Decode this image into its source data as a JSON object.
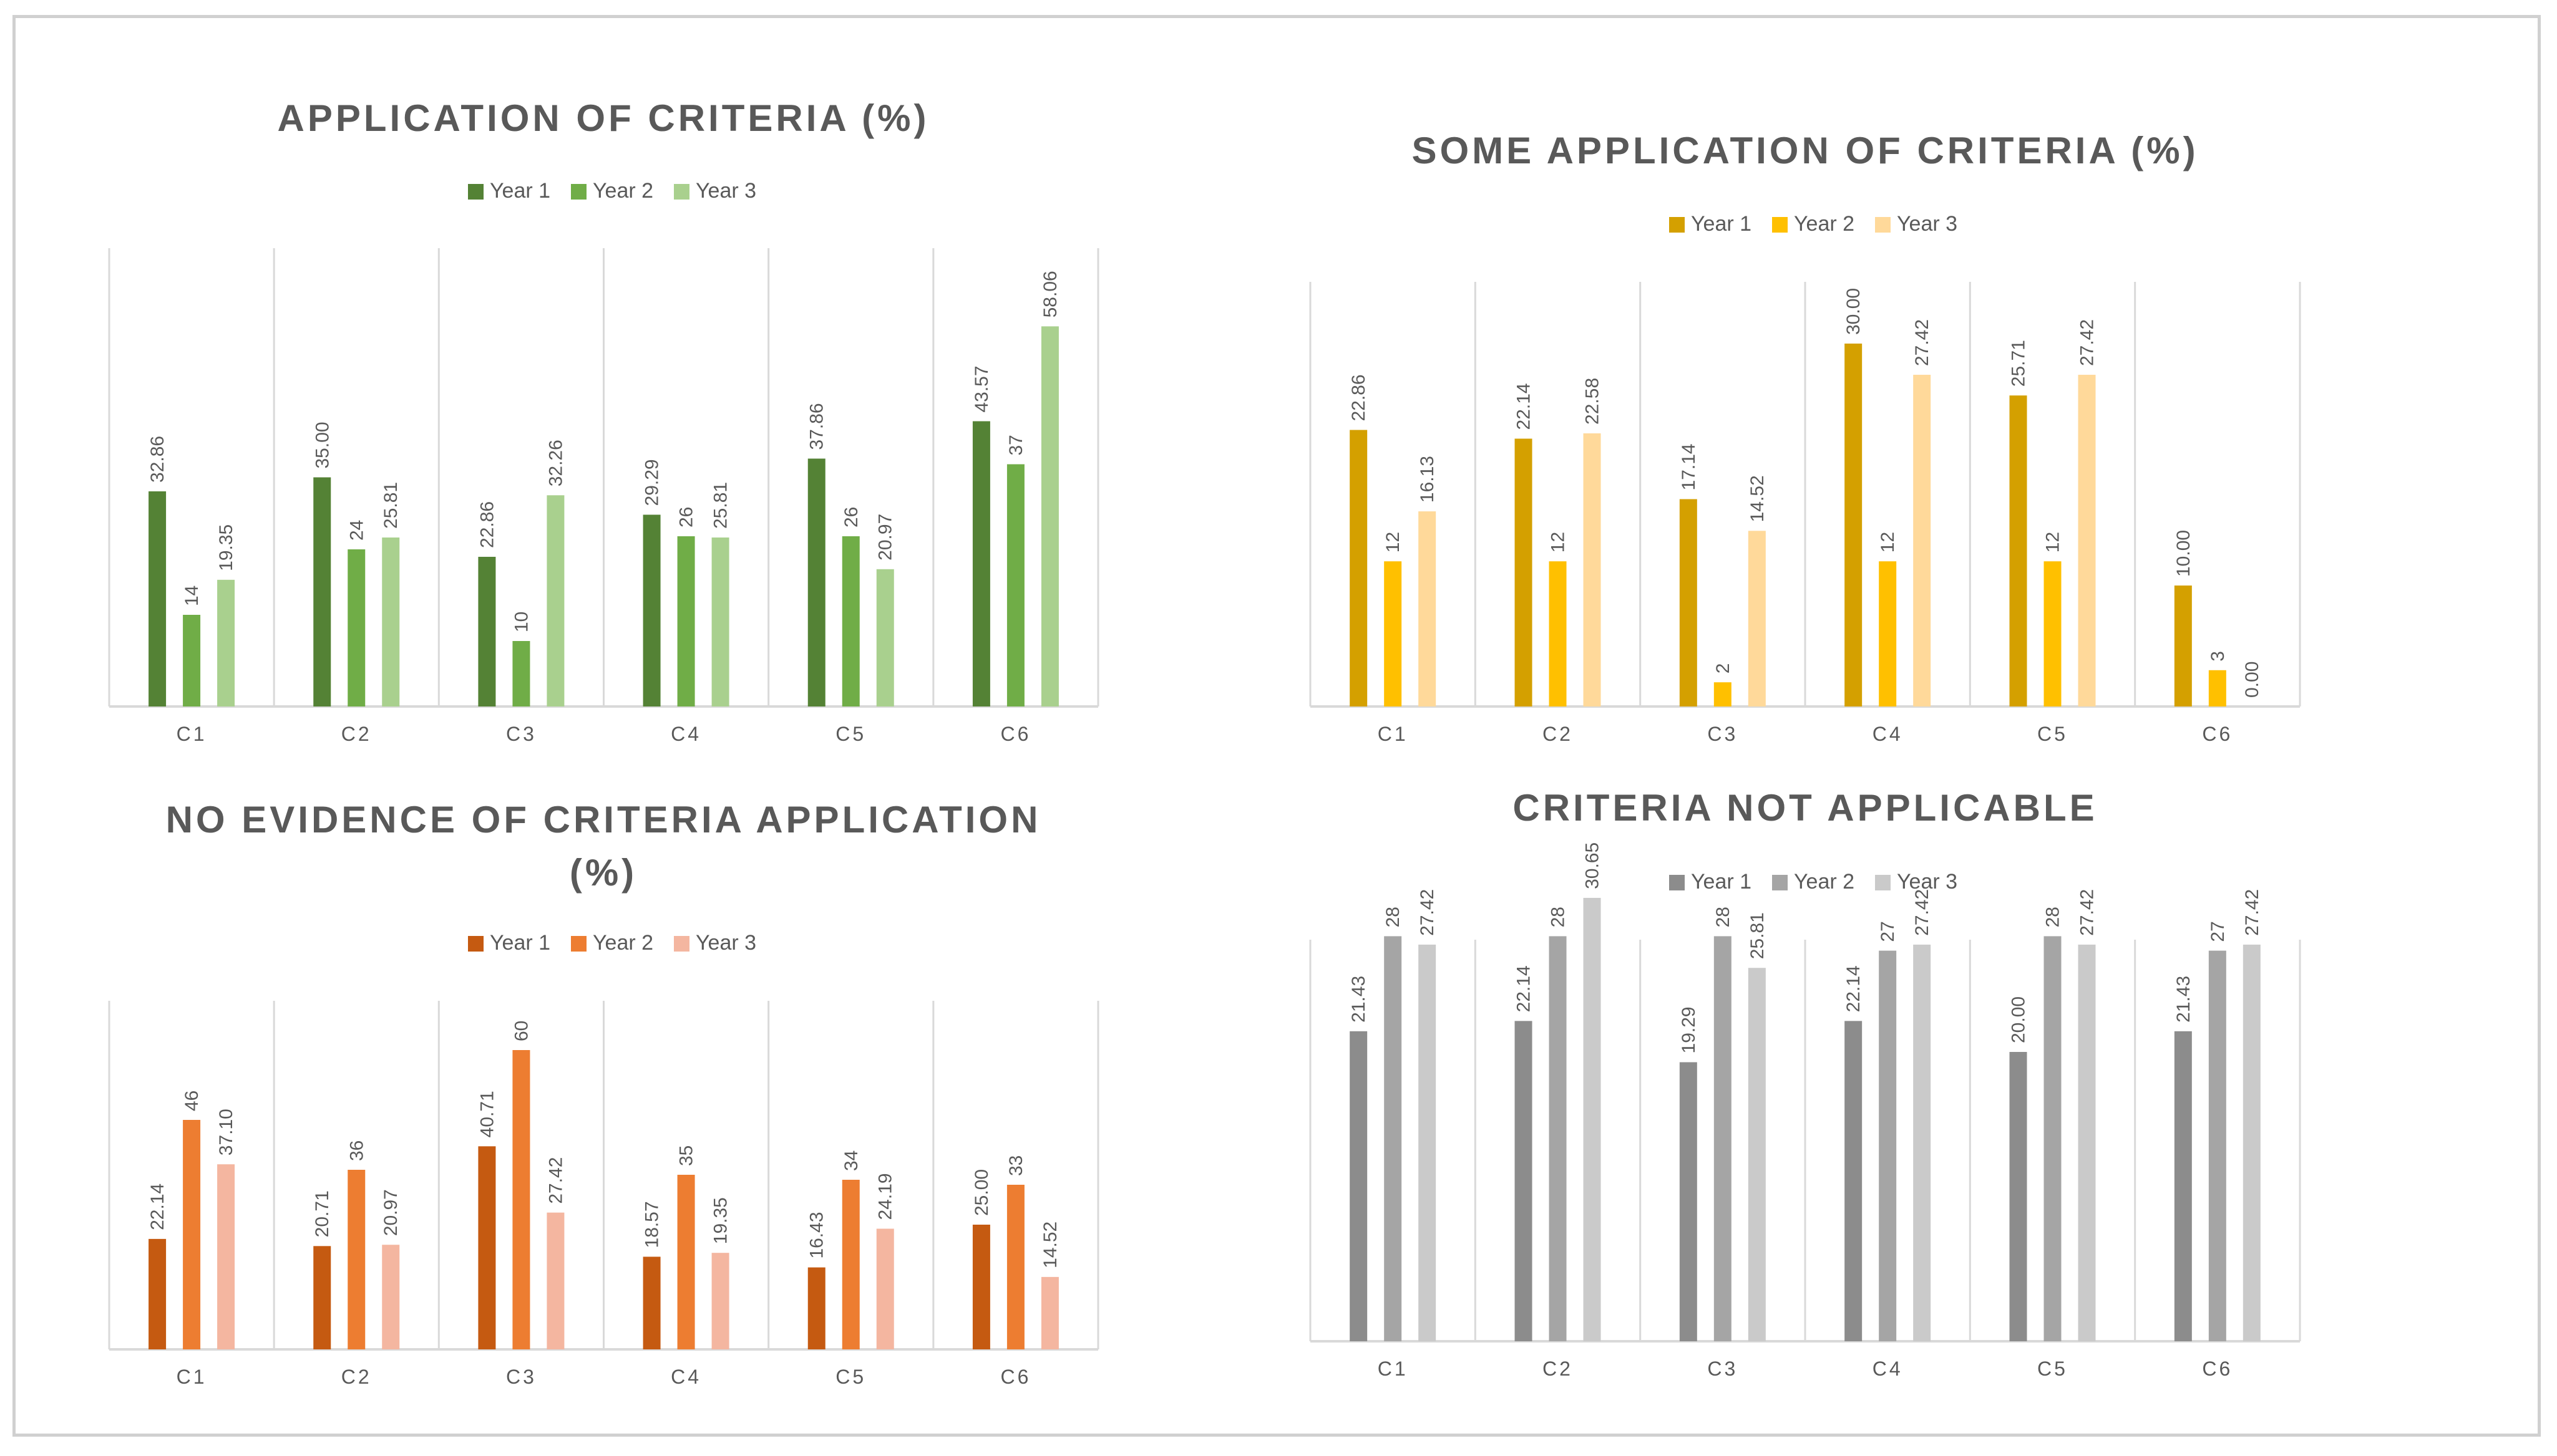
{
  "charts": [
    {
      "type": "bar",
      "title_lines": [
        "APPLICATION OF CRITERIA (%)"
      ],
      "categories": [
        "C1",
        "C2",
        "C3",
        "C4",
        "C5",
        "C6"
      ],
      "series": [
        {
          "name": "Year 1",
          "color": "#548235",
          "values": [
            32.86,
            35.0,
            22.86,
            29.29,
            37.86,
            43.57
          ],
          "labels": [
            "32.86",
            "35.00",
            "22.86",
            "29.29",
            "37.86",
            "43.57"
          ]
        },
        {
          "name": "Year 2",
          "color": "#70AD47",
          "values": [
            14,
            24,
            10,
            26,
            26,
            37
          ],
          "labels": [
            "14",
            "24",
            "10",
            "26",
            "26",
            "37"
          ]
        },
        {
          "name": "Year 3",
          "color": "#A9D08E",
          "values": [
            19.35,
            25.81,
            32.26,
            25.81,
            20.97,
            58.06
          ],
          "labels": [
            "19.35",
            "25.81",
            "32.26",
            "25.81",
            "20.97",
            "58.06"
          ]
        }
      ],
      "ylim": [
        0,
        70
      ]
    },
    {
      "type": "bar",
      "title_lines": [
        "SOME APPLICATION OF CRITERIA (%)"
      ],
      "categories": [
        "C1",
        "C2",
        "C3",
        "C4",
        "C5",
        "C6"
      ],
      "series": [
        {
          "name": "Year 1",
          "color": "#D4A000",
          "values": [
            22.86,
            22.14,
            17.14,
            30.0,
            25.71,
            10.0
          ],
          "labels": [
            "22.86",
            "22.14",
            "17.14",
            "30.00",
            "25.71",
            "10.00"
          ]
        },
        {
          "name": "Year 2",
          "color": "#FFC000",
          "values": [
            12,
            12,
            2,
            12,
            12,
            3
          ],
          "labels": [
            "12",
            "12",
            "2",
            "12",
            "12",
            "3"
          ]
        },
        {
          "name": "Year 3",
          "color": "#FFD99A",
          "values": [
            16.13,
            22.58,
            14.52,
            27.42,
            27.42,
            0.0
          ],
          "labels": [
            "16.13",
            "22.58",
            "14.52",
            "27.42",
            "27.42",
            "0.00"
          ]
        }
      ],
      "ylim": [
        0,
        35
      ]
    },
    {
      "type": "bar",
      "title_lines": [
        "NO EVIDENCE OF CRITERIA APPLICATION",
        "(%)"
      ],
      "categories": [
        "C1",
        "C2",
        "C3",
        "C4",
        "C5",
        "C6"
      ],
      "series": [
        {
          "name": "Year 1",
          "color": "#C55A11",
          "values": [
            22.14,
            20.71,
            40.71,
            18.57,
            16.43,
            25.0
          ],
          "labels": [
            "22.14",
            "20.71",
            "40.71",
            "18.57",
            "16.43",
            "25.00"
          ]
        },
        {
          "name": "Year 2",
          "color": "#ED7D31",
          "values": [
            46,
            36,
            60,
            35,
            34,
            33
          ],
          "labels": [
            "46",
            "36",
            "60",
            "35",
            "34",
            "33"
          ]
        },
        {
          "name": "Year 3",
          "color": "#F4B6A0",
          "values": [
            37.1,
            20.97,
            27.42,
            19.35,
            24.19,
            14.52
          ],
          "labels": [
            "37.10",
            "20.97",
            "27.42",
            "19.35",
            "24.19",
            "14.52"
          ]
        }
      ],
      "ylim": [
        0,
        70
      ]
    },
    {
      "type": "bar",
      "title_lines": [
        "CRITERIA NOT APPLICABLE"
      ],
      "categories": [
        "C1",
        "C2",
        "C3",
        "C4",
        "C5",
        "C6"
      ],
      "series": [
        {
          "name": "Year 1",
          "color": "#8C8C8C",
          "values": [
            21.43,
            22.14,
            19.29,
            22.14,
            20.0,
            21.43
          ],
          "labels": [
            "21.43",
            "22.14",
            "19.29",
            "22.14",
            "20.00",
            "21.43"
          ]
        },
        {
          "name": "Year 2",
          "color": "#A5A5A5",
          "values": [
            28,
            28,
            28,
            27,
            28,
            27
          ],
          "labels": [
            "28",
            "28",
            "28",
            "27",
            "28",
            "27"
          ]
        },
        {
          "name": "Year 3",
          "color": "#CACACA",
          "values": [
            27.42,
            30.65,
            25.81,
            27.42,
            27.42,
            27.42
          ],
          "labels": [
            "27.42",
            "30.65",
            "25.81",
            "27.42",
            "27.42",
            "27.42"
          ]
        }
      ],
      "ylim": [
        0,
        35
      ]
    }
  ]
}
